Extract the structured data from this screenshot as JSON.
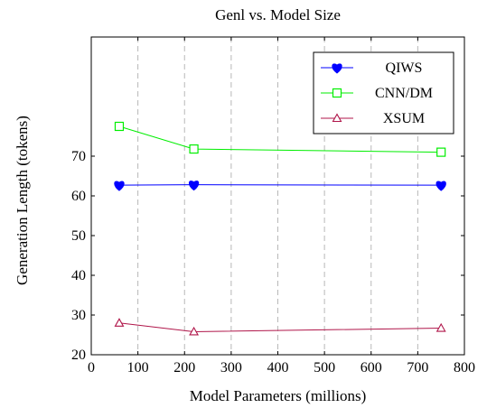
{
  "chart_data": {
    "type": "line",
    "title": "Genl vs. Model Size",
    "xlabel": "Model Parameters (millions)",
    "ylabel": "Generation Length (tokens)",
    "xlim": [
      0,
      800
    ],
    "ylim": [
      20,
      100
    ],
    "xticks": [
      0,
      100,
      200,
      300,
      400,
      500,
      600,
      700,
      800
    ],
    "yticks": [
      20,
      30,
      40,
      50,
      60,
      70
    ],
    "grid": "vertical-dashed",
    "legend": "top-right",
    "series": [
      {
        "name": "QIWS",
        "color": "#0000ff",
        "marker": "heart",
        "x": [
          60,
          220,
          750
        ],
        "y": [
          62.7,
          62.8,
          62.7
        ]
      },
      {
        "name": "CNN/DM",
        "color": "#00ee00",
        "marker": "square",
        "x": [
          60,
          220,
          750
        ],
        "y": [
          77.5,
          71.8,
          71.0
        ]
      },
      {
        "name": "XSUM",
        "color": "#b0164a",
        "marker": "triangle",
        "x": [
          60,
          220,
          750
        ],
        "y": [
          28.0,
          25.8,
          26.7
        ]
      }
    ]
  }
}
